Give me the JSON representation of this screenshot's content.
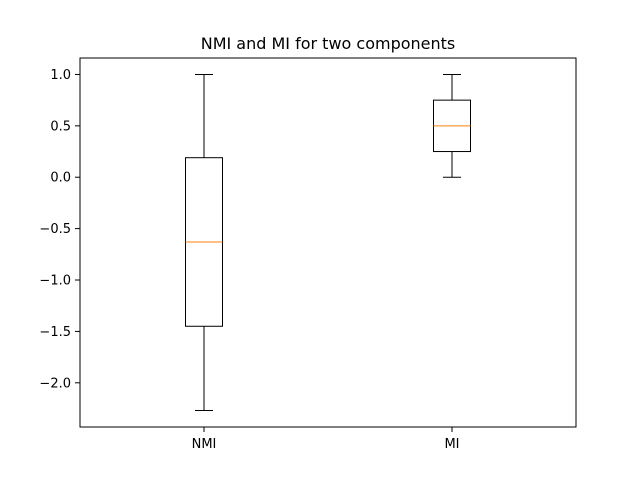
{
  "chart_data": {
    "type": "boxplot",
    "title": "NMI and MI for two components",
    "xlabel": "",
    "ylabel": "",
    "categories": [
      "NMI",
      "MI"
    ],
    "boxes": [
      {
        "label": "NMI",
        "whisker_low": -2.27,
        "q1": -1.45,
        "median": -0.63,
        "q3": 0.19,
        "whisker_high": 1.0
      },
      {
        "label": "MI",
        "whisker_low": 0.0,
        "q1": 0.25,
        "median": 0.5,
        "q3": 0.75,
        "whisker_high": 1.0
      }
    ],
    "ylim": [
      -2.43,
      1.16
    ],
    "yticks": [
      "1.0",
      "0.5",
      "0.0",
      "−0.5",
      "−1.0",
      "−1.5",
      "−2.0"
    ],
    "ytick_values": [
      1.0,
      0.5,
      0.0,
      -0.5,
      -1.0,
      -1.5,
      -2.0
    ],
    "grid": false,
    "colors": {
      "box": "#000000",
      "median": "#ff7f0e"
    }
  }
}
